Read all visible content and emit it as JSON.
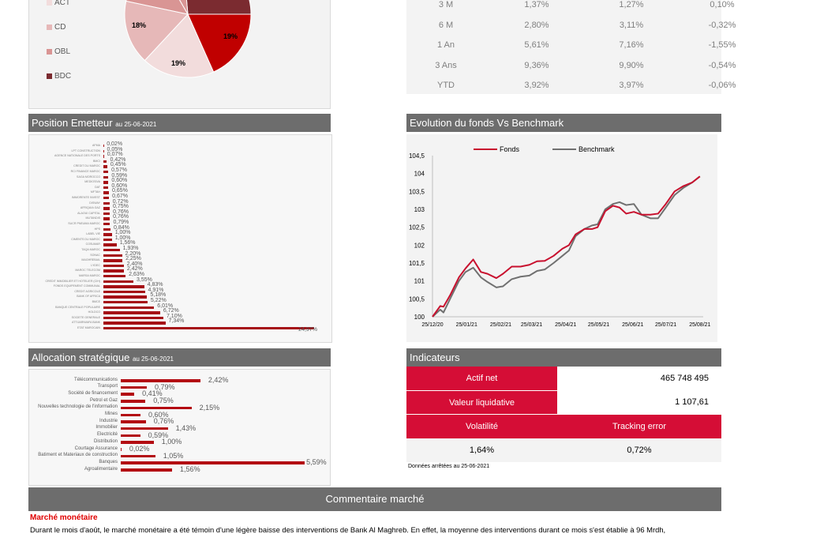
{
  "pie": {
    "legend": [
      "ACT",
      "CD",
      "OBL",
      "BDC"
    ],
    "colors": [
      "#f2dcdc",
      "#e6b8b8",
      "#d99594",
      "#7b2b30"
    ],
    "slices": [
      {
        "label": "18%",
        "color": "#e6b8b8"
      },
      {
        "label": "19%",
        "color": "#f2dcdc"
      },
      {
        "label": "19%",
        "color": "#c00000"
      }
    ]
  },
  "performance": {
    "rows": [
      [
        "3 M",
        "1,37%",
        "1,27%",
        "0,10%"
      ],
      [
        "6 M",
        "2,80%",
        "3,11%",
        "-0,32%"
      ],
      [
        "1 An",
        "5,61%",
        "7,16%",
        "-1,55%"
      ],
      [
        "3 Ans",
        "9,36%",
        "9,90%",
        "-0,54%"
      ],
      [
        "YTD",
        "3,92%",
        "3,97%",
        "-0,06%"
      ]
    ]
  },
  "emetteur": {
    "title": "Position Emetteur",
    "date": "au 25-06-2021",
    "bar_color": "#a50f15",
    "items": [
      [
        "AFMA",
        0.02,
        "0,02%"
      ],
      [
        "LPT CONSTRUCTION",
        0.05,
        "0,05%"
      ],
      [
        "AGENCE NATIONALE DES PORTS",
        0.07,
        "0,07%"
      ],
      [
        "BMCI",
        0.42,
        "0,42%"
      ],
      [
        "CREDIT DU MAROC",
        0.45,
        "0,45%"
      ],
      [
        "RCI FINANCE MAROC",
        0.57,
        "0,57%"
      ],
      [
        "SAGA MOROCCO",
        0.59,
        "0,59%"
      ],
      [
        "MEDIOSIVA",
        0.6,
        "0,60%"
      ],
      [
        "DAT",
        0.6,
        "0,60%"
      ],
      [
        "MFTAH",
        0.65,
        "0,65%"
      ],
      [
        "IMMORENTE INVEST",
        0.67,
        "0,67%"
      ],
      [
        "DISWAY",
        0.72,
        "0,72%"
      ],
      [
        "AFRIQUIA GAZ",
        0.75,
        "0,75%"
      ],
      [
        "ALAOUI CAPITAL",
        0.76,
        "0,76%"
      ],
      [
        "MUTANDIS",
        0.76,
        "0,76%"
      ],
      [
        "SUCR PNEUMA MAROC",
        0.79,
        "0,79%"
      ],
      [
        "HPS",
        0.84,
        "0,84%"
      ],
      [
        "LABEL VIE",
        1.0,
        "1,00%"
      ],
      [
        "CIMENTS DU MAROC",
        1.0,
        "1,00%"
      ],
      [
        "COSUMAR",
        1.56,
        "1,56%"
      ],
      [
        "TAQA MAROC",
        1.93,
        "1,93%"
      ],
      [
        "SONAC",
        2.2,
        "2,20%"
      ],
      [
        "MAGHREBAIL",
        2.25,
        "2,25%"
      ],
      [
        "LYDEC",
        2.4,
        "2,40%"
      ],
      [
        "MAROC TELECOM",
        2.42,
        "2,42%"
      ],
      [
        "MARSA MAROC",
        2.63,
        "2,63%"
      ],
      [
        "CREDIT IMMOBILIER ET HOTELIER (CIH)",
        3.55,
        "3,55%"
      ],
      [
        "FONDS EQUIPEMENT COMMUNAL",
        4.83,
        "4,83%"
      ],
      [
        "CREDIT AGRICOLE",
        4.91,
        "4,91%"
      ],
      [
        "BANK OF AFRICA",
        5.18,
        "5,18%"
      ],
      [
        "BMCE",
        5.22,
        "5,22%"
      ],
      [
        "BANQUE CENTRALE POPULAIRE",
        6.01,
        "6,01%"
      ],
      [
        "HOLDCO",
        6.72,
        "6,72%"
      ],
      [
        "SOCIETE GENERALE",
        7.1,
        "7,10%"
      ],
      [
        "ATTIJARIWAFA BANK",
        7.34,
        "7,34%"
      ],
      [
        "ETAT MAROCAIN",
        24.97,
        "24,97%"
      ]
    ]
  },
  "allocation": {
    "title": "Allocation stratégique",
    "date": "au 25-06-2021",
    "items": [
      [
        "Télécommunications",
        2.42,
        "2,42%"
      ],
      [
        "Transport",
        0.79,
        "0,79%"
      ],
      [
        "Société de financement",
        0.41,
        "0,41%"
      ],
      [
        "Petrol et Gaz",
        0.75,
        "0,75%"
      ],
      [
        "Nouvelles technologie de l'information",
        2.15,
        "2,15%"
      ],
      [
        "Mines",
        0.6,
        "0,60%"
      ],
      [
        "Industrie",
        0.76,
        "0,76%"
      ],
      [
        "Immobilier",
        1.43,
        "1,43%"
      ],
      [
        "Electricité",
        0.59,
        "0,59%"
      ],
      [
        "Distribution",
        1.0,
        "1,00%"
      ],
      [
        "Courtage Assurance",
        0.02,
        "0,02%"
      ],
      [
        "Batiment et Materiaux de construction",
        1.05,
        "1,05%"
      ],
      [
        "Banques",
        5.59,
        "5,59%"
      ],
      [
        "Agroalimentaire",
        1.56,
        "1,56%"
      ]
    ]
  },
  "evolution": {
    "title": "Evolution du fonds Vs Benchmark",
    "chart_data": {
      "type": "line",
      "ylim": [
        100,
        104.5
      ],
      "yticks": [
        "100",
        "100,5",
        "101",
        "101,5",
        "102",
        "102,5",
        "103",
        "103,5",
        "104",
        "104,5"
      ],
      "xticks": [
        [
          0,
          "25/12/20"
        ],
        [
          31,
          "25/01/21"
        ],
        [
          62,
          "25/02/21"
        ],
        [
          90,
          "25/03/21"
        ],
        [
          121,
          "25/04/21"
        ],
        [
          151,
          "25/05/21"
        ],
        [
          182,
          "25/06/21"
        ],
        [
          212,
          "25/07/21"
        ],
        [
          243,
          "25/08/21"
        ]
      ],
      "x": [
        0,
        7,
        10,
        16,
        24,
        30,
        37,
        44,
        50,
        58,
        64,
        72,
        80,
        88,
        95,
        102,
        110,
        118,
        124,
        130,
        138,
        145,
        150,
        157,
        164,
        170,
        176,
        183,
        190,
        198,
        205,
        212,
        220,
        228,
        236,
        243
      ],
      "series": [
        {
          "name": "Fonds",
          "color": "#c8102e",
          "values": [
            100,
            100.3,
            100.28,
            100.6,
            101.1,
            101.35,
            101.6,
            101.25,
            101.2,
            101.08,
            101.2,
            101.4,
            101.4,
            101.45,
            101.55,
            101.56,
            101.7,
            101.9,
            102.0,
            102.3,
            102.45,
            102.45,
            102.5,
            102.95,
            103.1,
            103.05,
            102.88,
            102.93,
            102.85,
            102.85,
            102.88,
            103.15,
            103.5,
            103.65,
            103.75,
            103.92
          ]
        },
        {
          "name": "Benchmark",
          "color": "#707070",
          "values": [
            100,
            100.2,
            100.12,
            100.5,
            101.0,
            101.25,
            101.37,
            101.1,
            100.97,
            100.82,
            100.85,
            101.05,
            101.12,
            101.15,
            101.28,
            101.32,
            101.5,
            101.7,
            101.85,
            102.25,
            102.45,
            102.55,
            102.58,
            103.0,
            103.15,
            103.2,
            103.12,
            103.15,
            102.85,
            102.75,
            102.75,
            103.05,
            103.4,
            103.6,
            103.75,
            103.92
          ]
        }
      ]
    }
  },
  "indicateurs": {
    "title": "Indicateurs",
    "actif_net_label": "Actif net",
    "actif_net": "465 748 495",
    "vl_label": "Valeur liquidative",
    "vl": "1 107,61",
    "vol_label": "Volatilité",
    "te_label": "Tracking error",
    "vol": "1,64%",
    "te": "0,72%",
    "note": "Données arrêtées au 25-06-2021",
    "accent": "#d50d36"
  },
  "commentaire": {
    "title": "Commentaire marché",
    "subtitle": "Marché monétaire",
    "text": "Durant le mois d'août, le marché monétaire a été témoin d'une légère baisse des interventions de Bank Al Maghreb. En effet, la moyenne des interventions durant ce mois s'est établie à 96 Mrdh,"
  }
}
